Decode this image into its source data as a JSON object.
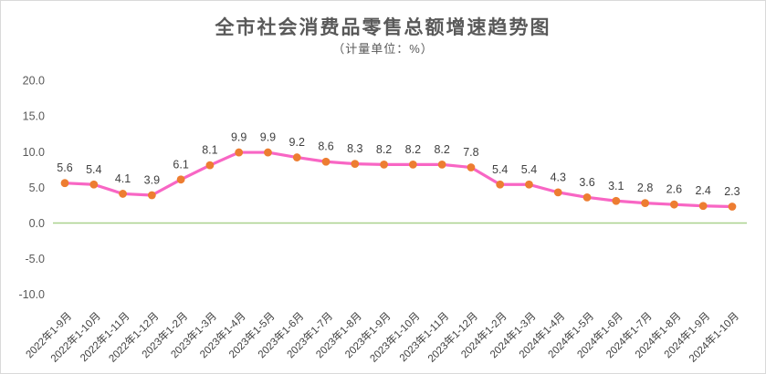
{
  "window": {
    "background": "#ffffff",
    "border_color": "#d9d9d9"
  },
  "chart_data": {
    "type": "line",
    "title": "全市社会消费品零售总额增速趋势图",
    "subtitle": "（计量单位：%）",
    "categories": [
      "2022年1-9月",
      "2022年1-10月",
      "2022年1-11月",
      "2022年1-12月",
      "2023年1-2月",
      "2023年1-3月",
      "2023年1-4月",
      "2023年1-5月",
      "2023年1-6月",
      "2023年1-7月",
      "2023年1-8月",
      "2023年1-9月",
      "2023年1-10月",
      "2023年1-11月",
      "2023年1-12月",
      "2024年1-2月",
      "2024年1-3月",
      "2024年1-4月",
      "2024年1-5月",
      "2024年1-6月",
      "2024年1-7月",
      "2024年1-8月",
      "2024年1-9月",
      "2024年1-10月"
    ],
    "values": [
      5.6,
      5.4,
      4.1,
      3.9,
      6.1,
      8.1,
      9.9,
      9.9,
      9.2,
      8.6,
      8.3,
      8.2,
      8.2,
      8.2,
      7.8,
      5.4,
      5.4,
      4.3,
      3.6,
      3.1,
      2.8,
      2.6,
      2.4,
      2.3
    ],
    "y_ticks": [
      20,
      15,
      10,
      5,
      0,
      -5,
      -10
    ],
    "ylim": [
      -10,
      20
    ],
    "grid": false,
    "legend": "none",
    "x_label_rotation_deg": -45,
    "colors": {
      "line": "#f866c4",
      "marker": "#ed7d31",
      "zero_line": "#a9d18e",
      "title_text": "#595959",
      "y_tick_text": "#595959",
      "x_label_text": "#3f3f3f",
      "data_label_text": "#404040"
    }
  }
}
